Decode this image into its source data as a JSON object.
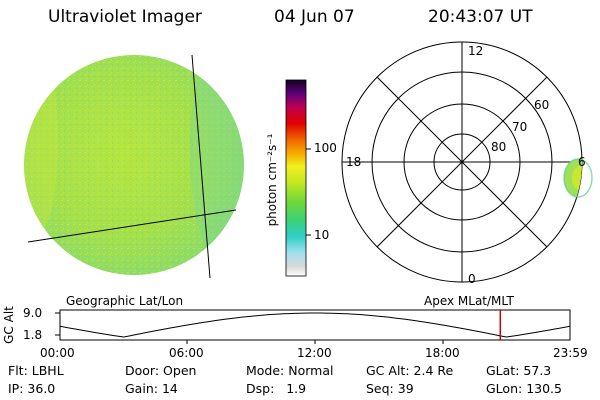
{
  "header": {
    "title": "Ultraviolet Imager",
    "date": "04 Jun 07",
    "time": "20:43:07 UT"
  },
  "colorbar": {
    "unit_label": "photon cm⁻²s⁻¹",
    "tick_labels": [
      "100",
      "10"
    ]
  },
  "polar_plot": {
    "mlt_labels": {
      "top": "12",
      "left": "18",
      "bottom": "0",
      "right": "6"
    },
    "lat_labels": [
      "60",
      "70",
      "80"
    ]
  },
  "orbit_panel": {
    "left_title": "Geographic Lat/Lon",
    "right_title": "Apex MLat/MLT",
    "y_axis_label": "GC Alt",
    "y_ticks": [
      "9.0",
      "1.8"
    ],
    "x_ticks": [
      "00:00",
      "06:00",
      "12:00",
      "18:00",
      "23:59"
    ],
    "current_time_hours": 20.72
  },
  "footer": {
    "rows": [
      [
        {
          "key": "Flt:",
          "value": "LBHL"
        },
        {
          "key": "Door:",
          "value": "Open"
        },
        {
          "key": "Mode:",
          "value": "Normal"
        },
        {
          "key": "GC Alt:",
          "value": "2.4 Re"
        },
        {
          "key": "GLat:",
          "value": "57.3"
        }
      ],
      [
        {
          "key": "IP:",
          "value": "36.0"
        },
        {
          "key": "Gain:",
          "value": "14"
        },
        {
          "key": "Dsp:",
          "value": "1.9"
        },
        {
          "key": "Seq:",
          "value": "39"
        },
        {
          "key": "GLon:",
          "value": "130.5"
        }
      ]
    ]
  },
  "colors": {
    "disk_fill": "#a8e34a",
    "disk_edge": "#7fd87c",
    "orbit_marker": "#cc0000"
  }
}
